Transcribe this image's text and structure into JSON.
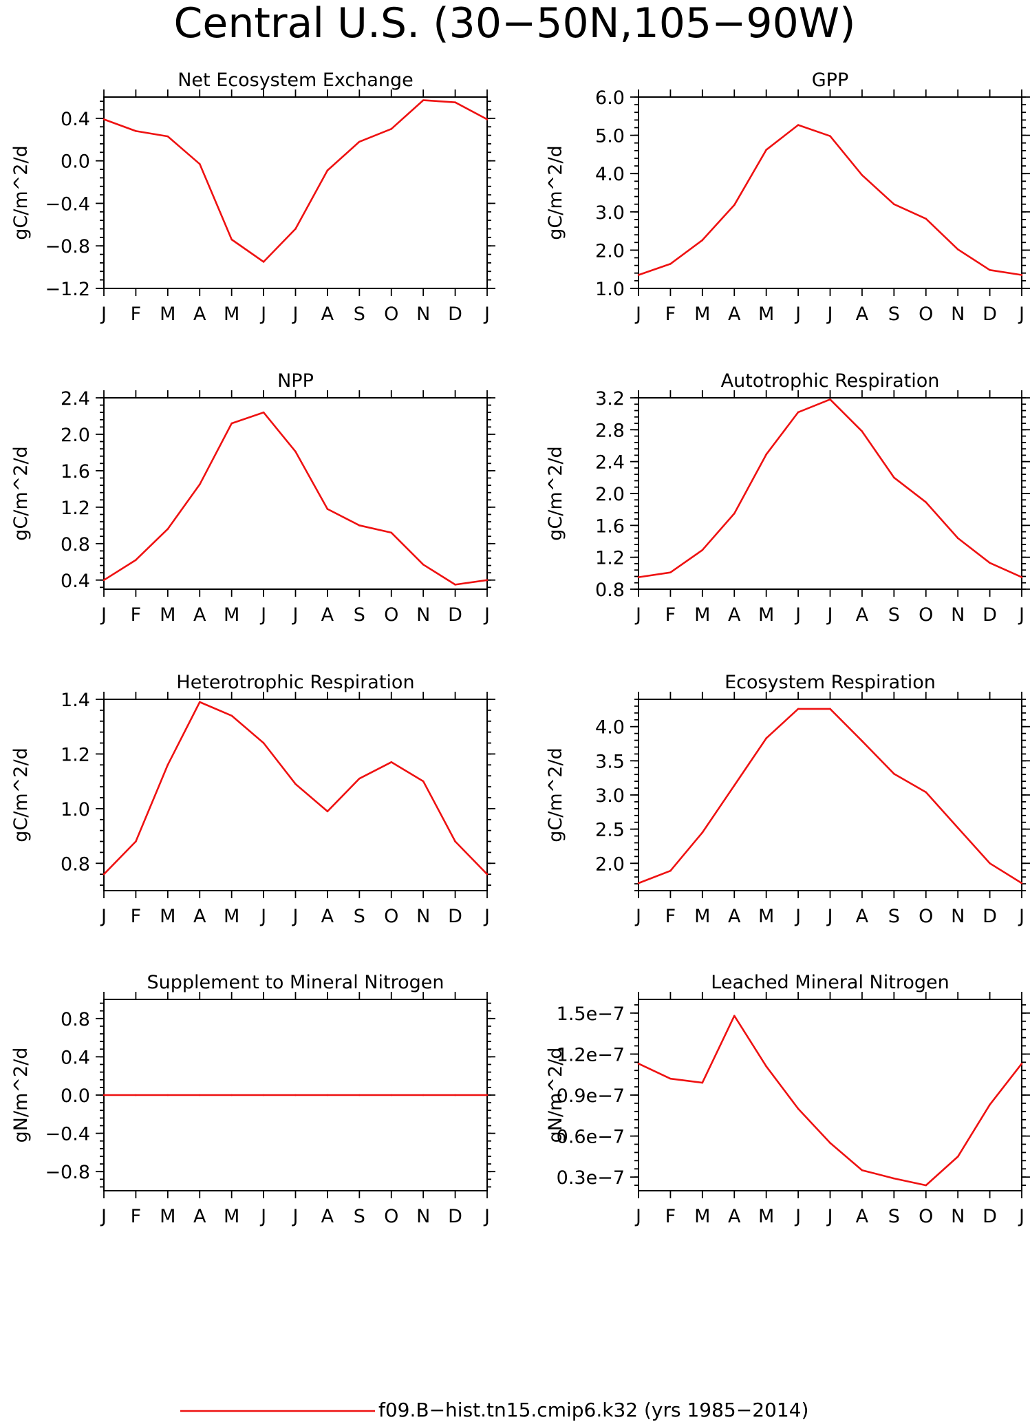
{
  "page_title": "Central U.S. (30−50N,105−90W)",
  "legend_label": "f09.B−hist.tn15.cmip6.k32 (yrs 1985−2014)",
  "colors": {
    "series": "#ee1111",
    "axes": "#000000",
    "background": "#ffffff"
  },
  "chart_data": [
    {
      "type": "line",
      "title": "Net Ecosystem Exchange",
      "ylabel": "gC/m^2/d",
      "categories": [
        "J",
        "F",
        "M",
        "A",
        "M",
        "J",
        "J",
        "A",
        "S",
        "O",
        "N",
        "D",
        "J"
      ],
      "ylim": [
        -1.2,
        0.6
      ],
      "yticks": [
        -1.2,
        -0.8,
        -0.4,
        0.0,
        0.4
      ],
      "ytick_labels": [
        "−1.2",
        "−0.8",
        "−0.4",
        "0.0",
        "0.4"
      ],
      "values": [
        0.39,
        0.28,
        0.23,
        -0.03,
        -0.74,
        -0.95,
        -0.64,
        -0.09,
        0.18,
        0.3,
        0.57,
        0.55,
        0.39
      ]
    },
    {
      "type": "line",
      "title": "GPP",
      "ylabel": "gC/m^2/d",
      "categories": [
        "J",
        "F",
        "M",
        "A",
        "M",
        "J",
        "J",
        "A",
        "S",
        "O",
        "N",
        "D",
        "J"
      ],
      "ylim": [
        1.0,
        6.0
      ],
      "yticks": [
        1.0,
        2.0,
        3.0,
        4.0,
        5.0,
        6.0
      ],
      "ytick_labels": [
        "1.0",
        "2.0",
        "3.0",
        "4.0",
        "5.0",
        "6.0"
      ],
      "values": [
        1.35,
        1.64,
        2.26,
        3.18,
        4.62,
        5.27,
        4.98,
        3.96,
        3.2,
        2.82,
        2.02,
        1.48,
        1.35
      ]
    },
    {
      "type": "line",
      "title": "NPP",
      "ylabel": "gC/m^2/d",
      "categories": [
        "J",
        "F",
        "M",
        "A",
        "M",
        "J",
        "J",
        "A",
        "S",
        "O",
        "N",
        "D",
        "J"
      ],
      "ylim": [
        0.3,
        2.4
      ],
      "yticks": [
        0.4,
        0.8,
        1.2,
        1.6,
        2.0,
        2.4
      ],
      "ytick_labels": [
        "0.4",
        "0.8",
        "1.2",
        "1.6",
        "2.0",
        "2.4"
      ],
      "values": [
        0.4,
        0.62,
        0.96,
        1.45,
        2.12,
        2.24,
        1.81,
        1.18,
        1.0,
        0.92,
        0.57,
        0.35,
        0.4
      ]
    },
    {
      "type": "line",
      "title": "Autotrophic Respiration",
      "ylabel": "gC/m^2/d",
      "categories": [
        "J",
        "F",
        "M",
        "A",
        "M",
        "J",
        "J",
        "A",
        "S",
        "O",
        "N",
        "D",
        "J"
      ],
      "ylim": [
        0.8,
        3.2
      ],
      "yticks": [
        0.8,
        1.2,
        1.6,
        2.0,
        2.4,
        2.8,
        3.2
      ],
      "ytick_labels": [
        "0.8",
        "1.2",
        "1.6",
        "2.0",
        "2.4",
        "2.8",
        "3.2"
      ],
      "values": [
        0.95,
        1.01,
        1.29,
        1.75,
        2.49,
        3.02,
        3.18,
        2.78,
        2.2,
        1.89,
        1.44,
        1.13,
        0.95
      ]
    },
    {
      "type": "line",
      "title": "Heterotrophic Respiration",
      "ylabel": "gC/m^2/d",
      "categories": [
        "J",
        "F",
        "M",
        "A",
        "M",
        "J",
        "J",
        "A",
        "S",
        "O",
        "N",
        "D",
        "J"
      ],
      "ylim": [
        0.7,
        1.4
      ],
      "yticks": [
        0.8,
        1.0,
        1.2,
        1.4
      ],
      "ytick_labels": [
        "0.8",
        "1.0",
        "1.2",
        "1.4"
      ],
      "values": [
        0.76,
        0.88,
        1.16,
        1.39,
        1.34,
        1.24,
        1.09,
        0.99,
        1.11,
        1.17,
        1.1,
        0.88,
        0.76
      ]
    },
    {
      "type": "line",
      "title": "Ecosystem Respiration",
      "ylabel": "gC/m^2/d",
      "categories": [
        "J",
        "F",
        "M",
        "A",
        "M",
        "J",
        "J",
        "A",
        "S",
        "O",
        "N",
        "D",
        "J"
      ],
      "ylim": [
        1.6,
        4.4
      ],
      "yticks": [
        2.0,
        2.5,
        3.0,
        3.5,
        4.0
      ],
      "ytick_labels": [
        "2.0",
        "2.5",
        "3.0",
        "3.5",
        "4.0"
      ],
      "values": [
        1.71,
        1.89,
        2.45,
        3.14,
        3.83,
        4.26,
        4.26,
        3.79,
        3.31,
        3.04,
        2.52,
        2.0,
        1.71
      ]
    },
    {
      "type": "line",
      "title": "Supplement to Mineral Nitrogen",
      "ylabel": "gN/m^2/d",
      "categories": [
        "J",
        "F",
        "M",
        "A",
        "M",
        "J",
        "J",
        "A",
        "S",
        "O",
        "N",
        "D",
        "J"
      ],
      "ylim": [
        -1.0,
        1.0
      ],
      "yticks": [
        -0.8,
        -0.4,
        0.0,
        0.4,
        0.8
      ],
      "ytick_labels": [
        "−0.8",
        "−0.4",
        "0.0",
        "0.4",
        "0.8"
      ],
      "values": [
        0,
        0,
        0,
        0,
        0,
        0,
        0,
        0,
        0,
        0,
        0,
        0,
        0
      ]
    },
    {
      "type": "line",
      "title": "Leached Mineral Nitrogen",
      "ylabel": "gN/m^2/d",
      "categories": [
        "J",
        "F",
        "M",
        "A",
        "M",
        "J",
        "J",
        "A",
        "S",
        "O",
        "N",
        "D",
        "J"
      ],
      "ylim": [
        2e-08,
        1.6e-07
      ],
      "yticks": [
        3e-08,
        6e-08,
        9e-08,
        1.2e-07,
        1.5e-07
      ],
      "ytick_labels": [
        "0.3e−7",
        "0.6e−7",
        "0.9e−7",
        "1.2e−7",
        "1.5e−7"
      ],
      "values": [
        1.13e-07,
        1.02e-07,
        9.9e-08,
        1.48e-07,
        1.11e-07,
        8e-08,
        5.5e-08,
        3.5e-08,
        2.9e-08,
        2.4e-08,
        4.5e-08,
        8.3e-08,
        1.13e-07
      ]
    }
  ]
}
